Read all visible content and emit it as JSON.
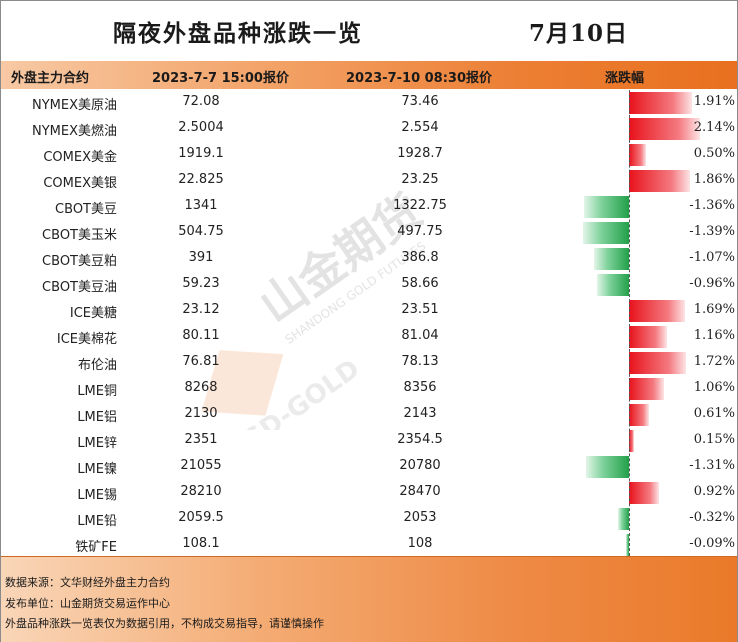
{
  "title": "隔夜外盘品种涨跌一览",
  "date": "7月10日",
  "columns": {
    "name": "外盘主力合约",
    "old": "2023-7-7 15:00报价",
    "new": "2023-7-10 08:30报价",
    "change": "涨跌幅"
  },
  "rows": [
    {
      "name": "NYMEX美原油",
      "old": "72.08",
      "new": "73.46",
      "pct": "1.91%",
      "value": 1.91
    },
    {
      "name": "NYMEX美燃油",
      "old": "2.5004",
      "new": "2.554",
      "pct": "2.14%",
      "value": 2.14
    },
    {
      "name": "COMEX美金",
      "old": "1919.1",
      "new": "1928.7",
      "pct": "0.50%",
      "value": 0.5
    },
    {
      "name": "COMEX美银",
      "old": "22.825",
      "new": "23.25",
      "pct": "1.86%",
      "value": 1.86
    },
    {
      "name": "CBOT美豆",
      "old": "1341",
      "new": "1322.75",
      "pct": "-1.36%",
      "value": -1.36
    },
    {
      "name": "CBOT美玉米",
      "old": "504.75",
      "new": "497.75",
      "pct": "-1.39%",
      "value": -1.39
    },
    {
      "name": "CBOT美豆粕",
      "old": "391",
      "new": "386.8",
      "pct": "-1.07%",
      "value": -1.07
    },
    {
      "name": "CBOT美豆油",
      "old": "59.23",
      "new": "58.66",
      "pct": "-0.96%",
      "value": -0.96
    },
    {
      "name": "ICE美糖",
      "old": "23.12",
      "new": "23.51",
      "pct": "1.69%",
      "value": 1.69
    },
    {
      "name": "ICE美棉花",
      "old": "80.11",
      "new": "81.04",
      "pct": "1.16%",
      "value": 1.16
    },
    {
      "name": "布伦油",
      "old": "76.81",
      "new": "78.13",
      "pct": "1.72%",
      "value": 1.72
    },
    {
      "name": "LME铜",
      "old": "8268",
      "new": "8356",
      "pct": "1.06%",
      "value": 1.06
    },
    {
      "name": "LME铝",
      "old": "2130",
      "new": "2143",
      "pct": "0.61%",
      "value": 0.61
    },
    {
      "name": "LME锌",
      "old": "2351",
      "new": "2354.5",
      "pct": "0.15%",
      "value": 0.15
    },
    {
      "name": "LME镍",
      "old": "21055",
      "new": "20780",
      "pct": "-1.31%",
      "value": -1.31
    },
    {
      "name": "LME锡",
      "old": "28210",
      "new": "28470",
      "pct": "0.92%",
      "value": 0.92
    },
    {
      "name": "LME铅",
      "old": "2059.5",
      "new": "2053",
      "pct": "-0.32%",
      "value": -0.32
    },
    {
      "name": "铁矿FE",
      "old": "108.1",
      "new": "108",
      "pct": "-0.09%",
      "value": -0.09
    }
  ],
  "footer": {
    "source": "数据来源：文华财经外盘主力合约",
    "publisher": "发布单位：山金期货交易运作中心",
    "disclaimer": "外盘品种涨跌一览表仅为数据引用，不构成交易指导，请谨慎操作"
  },
  "watermark": {
    "brand_cn": "山金期货",
    "brand_en": "SHANDONG GOLD FUTURES",
    "logo_text": "SD-GOLD"
  },
  "colors": {
    "positive": "#e8121c",
    "negative": "#22a04a",
    "accent": "#e8701f"
  }
}
